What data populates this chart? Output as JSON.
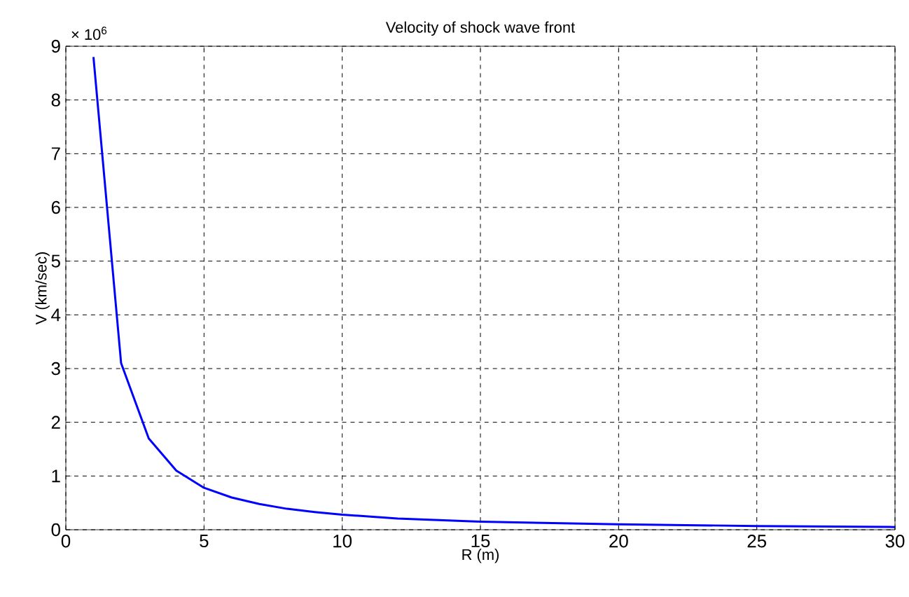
{
  "chart_data": {
    "type": "line",
    "title": "Velocity of shock wave front",
    "xlabel": "R (m)",
    "ylabel": "V (km/sec)",
    "annotations": [
      "× 10$^{6}$"
    ],
    "x": [
      1,
      2,
      3,
      4,
      5,
      6,
      7,
      8,
      9,
      10,
      12,
      15,
      20,
      25,
      30
    ],
    "series": [
      {
        "color": "#0000ff",
        "values": [
          8.8,
          3.1,
          1.7,
          1.1,
          0.78,
          0.6,
          0.48,
          0.39,
          0.33,
          0.28,
          0.21,
          0.15,
          0.1,
          0.07,
          0.05
        ]
      }
    ],
    "xlim": [
      0,
      30
    ],
    "ylim": [
      0,
      9
    ],
    "xticks": [
      0,
      5,
      10,
      15,
      20,
      25,
      30
    ],
    "yticks": [
      0,
      1,
      2,
      3,
      4,
      5,
      6,
      7,
      8,
      9
    ],
    "grid": true,
    "line_style": "solid",
    "marker": "none"
  }
}
